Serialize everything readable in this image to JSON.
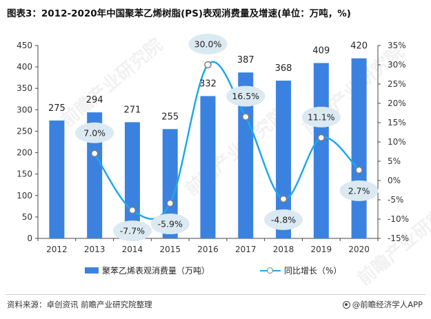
{
  "title": "图表3：2012-2020年中国聚苯乙烯树脂(PS)表观消费量及增速(单位：万吨，%)",
  "source": "资料来源：卓创资讯 前瞻产业研究院整理",
  "brand": "@前瞻经济学人APP",
  "watermark": "前瞻产业研究院",
  "colors": {
    "bar": "#3b82e0",
    "line": "#1ea8e8",
    "bubble": "#dbe9f2"
  },
  "chart_data": {
    "type": "bar+line",
    "title": "图表3：2012-2020年中国聚苯乙烯树脂(PS)表观消费量及增速(单位：万吨，%)",
    "categories": [
      "2012",
      "2013",
      "2014",
      "2015",
      "2016",
      "2017",
      "2018",
      "2019",
      "2020"
    ],
    "series": [
      {
        "name": "聚苯乙烯表观消费量（万吨）",
        "type": "bar",
        "axis": "left",
        "values": [
          275,
          294,
          271,
          255,
          332,
          387,
          368,
          409,
          420
        ],
        "labels": [
          "275",
          "294",
          "271",
          "255",
          "332",
          "387",
          "368",
          "409",
          "420"
        ]
      },
      {
        "name": "同比增长（%）",
        "type": "line",
        "axis": "right",
        "values": [
          7.0,
          -7.7,
          -5.9,
          30.0,
          16.5,
          -4.8,
          11.1,
          2.7
        ],
        "x": [
          "2013",
          "2014",
          "2015",
          "2016",
          "2017",
          "2018",
          "2019",
          "2020"
        ],
        "labels": [
          "7.0%",
          "-7.7%",
          "-5.9%",
          "30.0%",
          "16.5%",
          "-4.8%",
          "11.1%",
          "2.7%"
        ]
      }
    ],
    "y_left": {
      "min": 0,
      "max": 450,
      "ticks": [
        "0",
        "50",
        "100",
        "150",
        "200",
        "250",
        "300",
        "350",
        "400",
        "450"
      ]
    },
    "y_right": {
      "min": -15,
      "max": 35,
      "ticks": [
        "-15%",
        "-10%",
        "-5%",
        "0%",
        "5%",
        "10%",
        "15%",
        "20%",
        "25%",
        "30%",
        "35%"
      ]
    },
    "legend": {
      "position": "bottom",
      "bar_label": "聚苯乙烯表观消费量（万吨）",
      "line_label": "同比增长（%）"
    }
  }
}
